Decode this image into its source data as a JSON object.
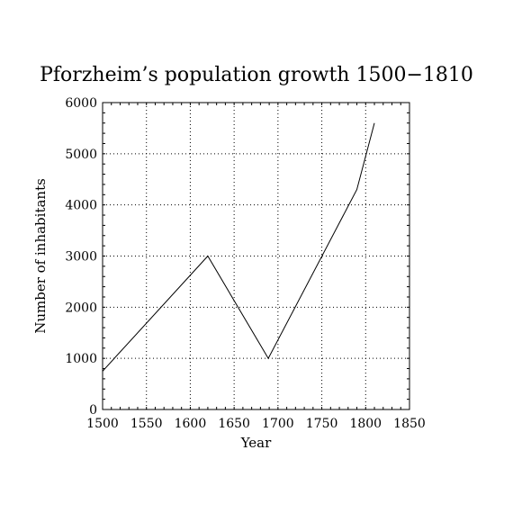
{
  "chart_data": {
    "type": "line",
    "title": "Pforzheim’s population growth 1500−1810",
    "xlabel": "Year",
    "ylabel": "Number of inhabitants",
    "xlim": [
      1500,
      1850
    ],
    "ylim": [
      0,
      6000
    ],
    "x_ticks": [
      1500,
      1550,
      1600,
      1650,
      1700,
      1750,
      1800,
      1850
    ],
    "y_ticks": [
      0,
      1000,
      2000,
      3000,
      4000,
      5000,
      6000
    ],
    "x_minor_step": 10,
    "y_minor_step": 200,
    "grid": true,
    "series": [
      {
        "x": [
          1500,
          1620,
          1689,
          1790,
          1810
        ],
        "y": [
          750,
          3000,
          1000,
          4300,
          5600
        ]
      }
    ]
  }
}
